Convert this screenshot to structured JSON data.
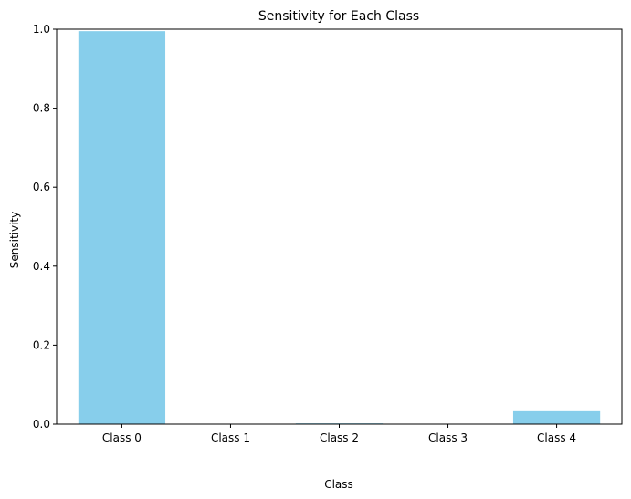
{
  "chart_data": {
    "type": "bar",
    "title": "Sensitivity for Each Class",
    "xlabel": "Class",
    "ylabel": "Sensitivity",
    "categories": [
      "Class 0",
      "Class 1",
      "Class 2",
      "Class 3",
      "Class 4"
    ],
    "values": [
      0.995,
      0.0,
      0.002,
      0.0,
      0.035
    ],
    "ylim": [
      0,
      1.0
    ],
    "yticks": [
      "0.0",
      "0.2",
      "0.4",
      "0.6",
      "0.8",
      "1.0"
    ],
    "bar_color": "#87CEEB",
    "grid": false,
    "legend": false
  }
}
